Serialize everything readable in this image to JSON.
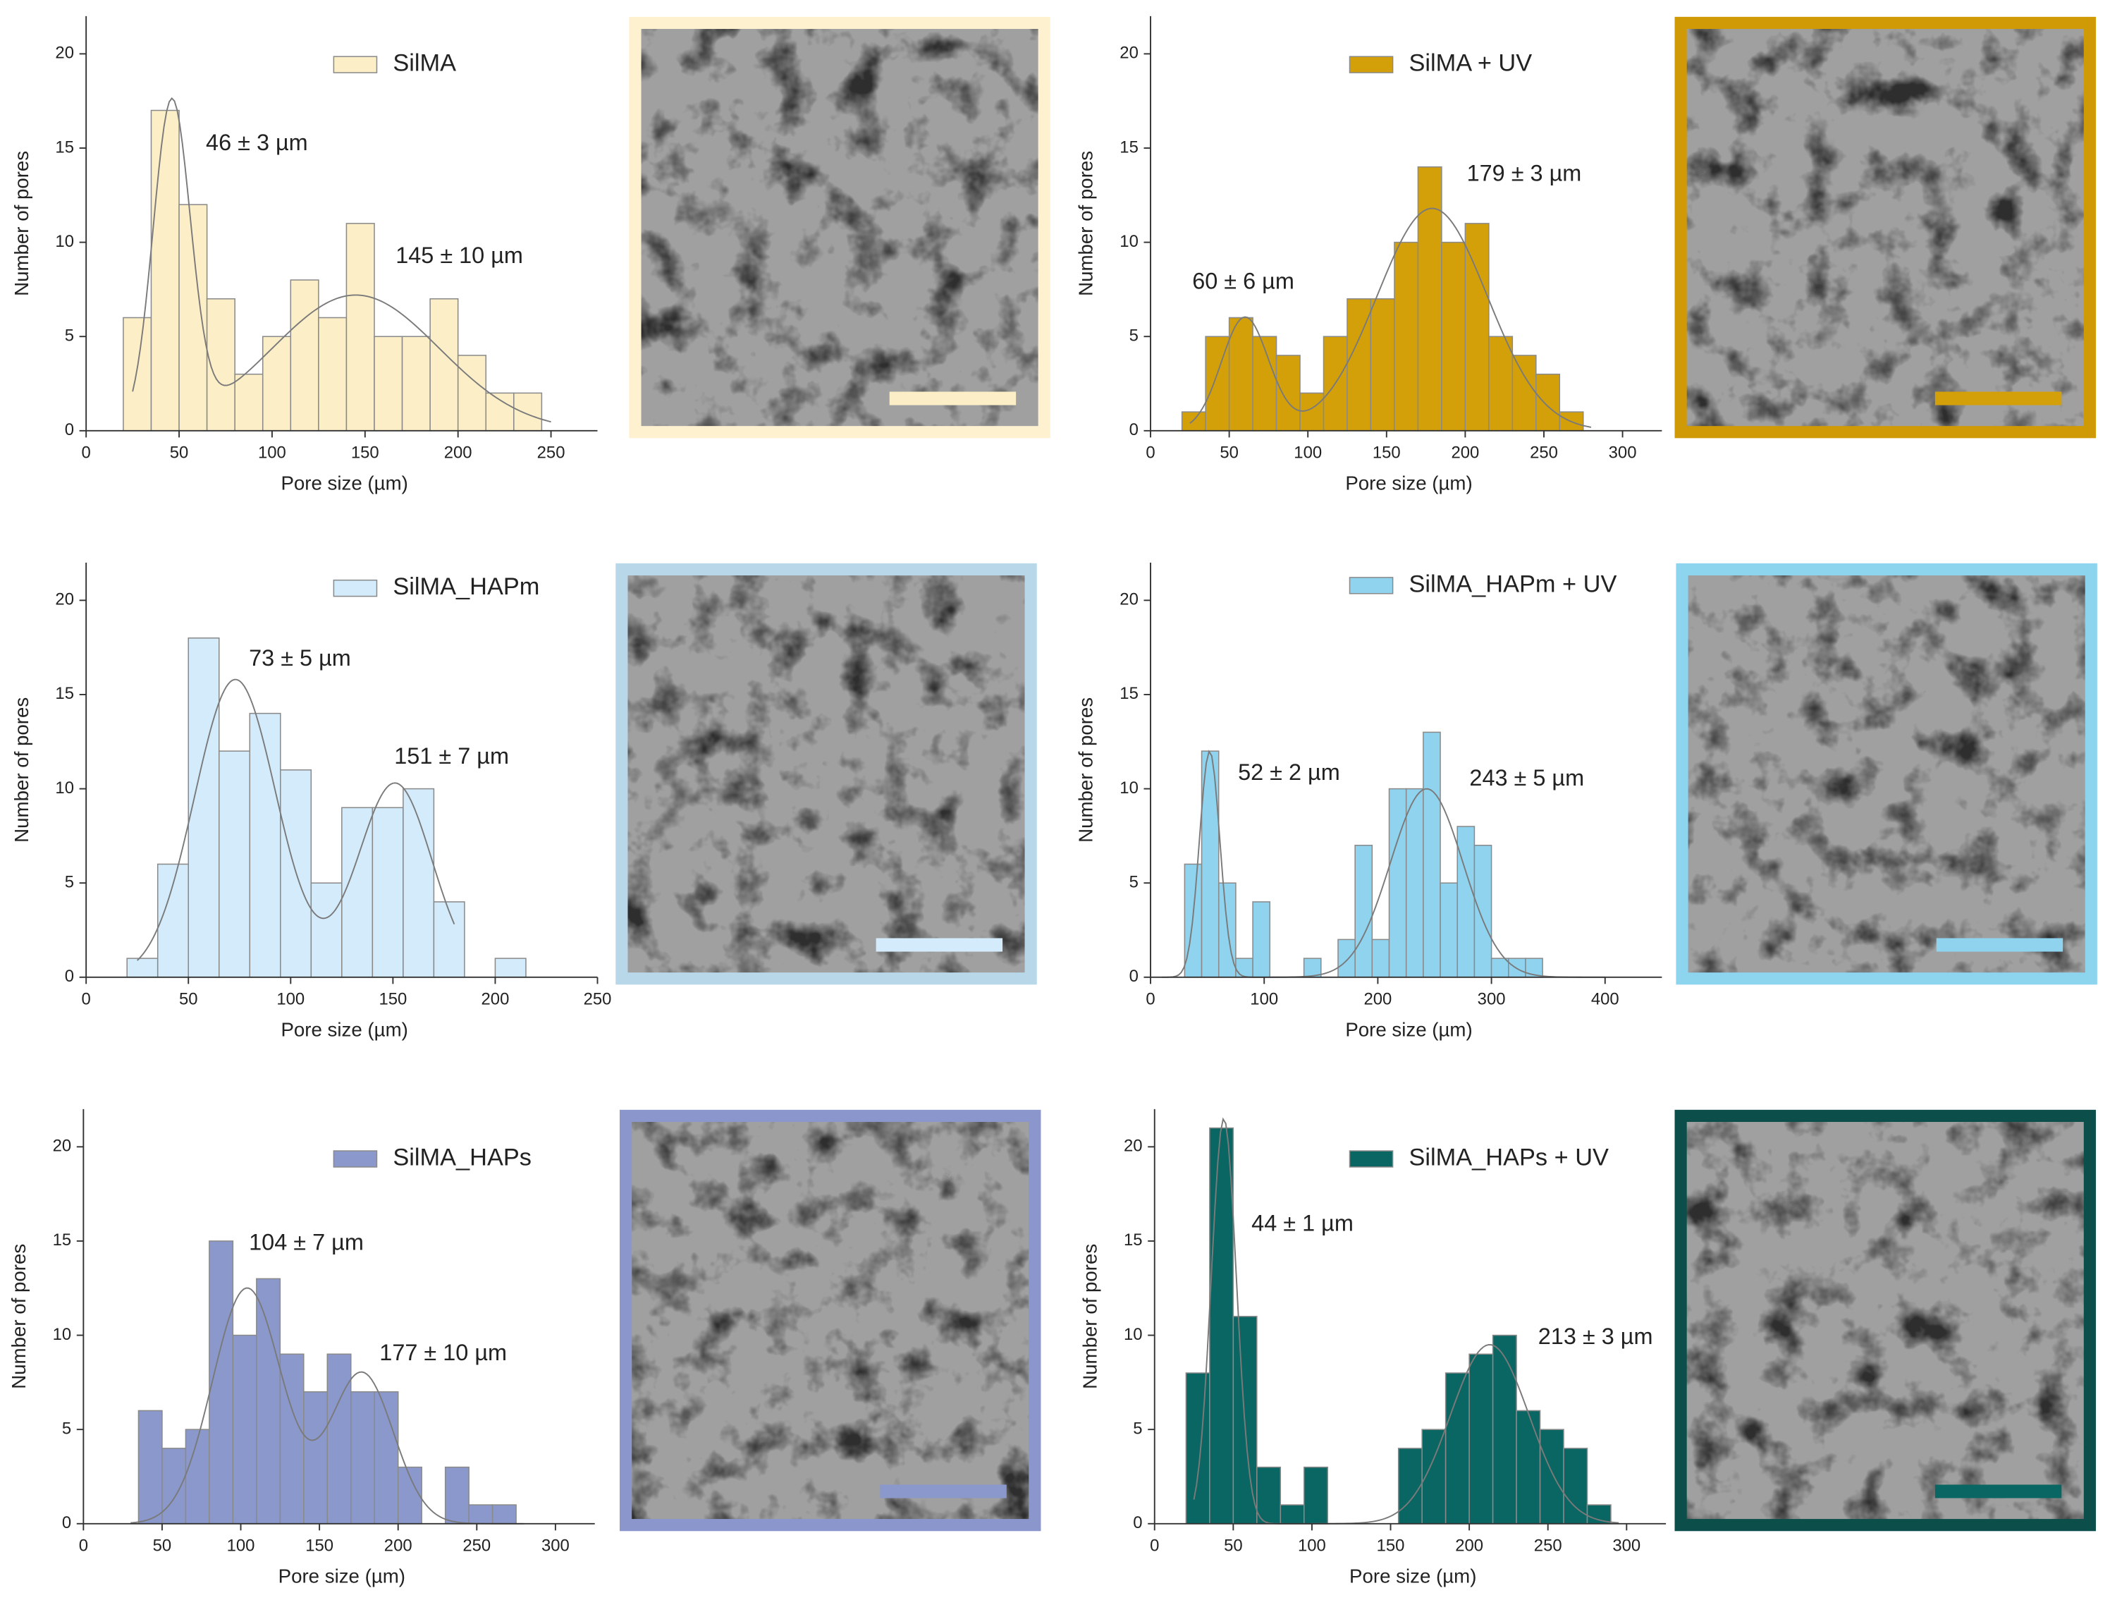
{
  "chart_data": [
    {
      "type": "histogram",
      "name": "SilMA",
      "color": "#fcefc8",
      "image_frame_color": "#fdf1cf",
      "bins": [
        20,
        35,
        50,
        65,
        80,
        95,
        110,
        125,
        140,
        155,
        170,
        185,
        200,
        215,
        230,
        245
      ],
      "values": [
        6,
        17,
        12,
        7,
        3,
        5,
        8,
        6,
        11,
        5,
        5,
        7,
        4,
        2,
        2
      ],
      "xlim": [
        0,
        275
      ],
      "xticks": [
        0,
        50,
        100,
        150,
        200,
        250
      ],
      "ylim": [
        0,
        22
      ],
      "yticks": [
        0,
        5,
        10,
        15,
        20
      ],
      "xlabel": "Pore size (µm)",
      "ylabel": "Number of pores",
      "annotations": [
        "46 ± 3 µm",
        "145 ± 10 µm"
      ],
      "fit_range": [
        25,
        250
      ],
      "peaks": [
        {
          "center": 46,
          "height": 17,
          "sd": 10
        },
        {
          "center": 145,
          "height": 7.2,
          "sd": 45
        }
      ]
    },
    {
      "type": "histogram",
      "name": "SilMA + UV",
      "color": "#d4a00a",
      "image_frame_color": "#cf9a06",
      "bins": [
        20,
        35,
        50,
        65,
        80,
        95,
        110,
        125,
        140,
        155,
        170,
        185,
        200,
        215,
        230,
        245,
        260,
        275
      ],
      "values": [
        1,
        5,
        6,
        5,
        4,
        2,
        5,
        7,
        7,
        10,
        14,
        10,
        11,
        5,
        4,
        3,
        1
      ],
      "xlim": [
        0,
        325
      ],
      "xticks": [
        0,
        50,
        100,
        150,
        200,
        250,
        300
      ],
      "ylim": [
        0,
        22
      ],
      "yticks": [
        0,
        5,
        10,
        15,
        20
      ],
      "xlabel": "Pore size (µm)",
      "ylabel": "Number of pores",
      "annotations": [
        "60 ± 6 µm",
        "179 ± 3 µm"
      ],
      "fit_range": [
        25,
        280
      ],
      "peaks": [
        {
          "center": 60,
          "height": 6,
          "sd": 15
        },
        {
          "center": 179,
          "height": 11.8,
          "sd": 35
        }
      ]
    },
    {
      "type": "histogram",
      "name": "SilMA_HAPm",
      "color": "#d3ebfa",
      "image_frame_color": "#b8d8ea",
      "bins": [
        20,
        35,
        50,
        65,
        80,
        95,
        110,
        125,
        140,
        155,
        170,
        185,
        200,
        215
      ],
      "values": [
        1,
        6,
        18,
        12,
        14,
        11,
        5,
        9,
        9,
        10,
        4,
        0,
        1
      ],
      "xlim": [
        0,
        250
      ],
      "xticks": [
        0,
        50,
        100,
        150,
        200,
        250
      ],
      "ylim": [
        0,
        22
      ],
      "yticks": [
        0,
        5,
        10,
        15,
        20
      ],
      "xlabel": "Pore size (µm)",
      "ylabel": "Number of pores",
      "annotations": [
        "73 ± 5 µm",
        "151 ± 7 µm"
      ],
      "fit_range": [
        25,
        180
      ],
      "peaks": [
        {
          "center": 73,
          "height": 15.8,
          "sd": 20
        },
        {
          "center": 151,
          "height": 10.3,
          "sd": 18
        }
      ]
    },
    {
      "type": "histogram",
      "name": "SilMA_HAPm  + UV",
      "color": "#8fd3ef",
      "image_frame_color": "#8dd4ef",
      "bins": [
        30,
        45,
        60,
        75,
        90,
        105,
        120,
        135,
        150,
        165,
        180,
        195,
        210,
        225,
        240,
        255,
        270,
        285,
        300,
        315,
        330,
        345
      ],
      "values": [
        6,
        12,
        5,
        1,
        4,
        0,
        0,
        1,
        0,
        2,
        7,
        2,
        10,
        10,
        13,
        5,
        8,
        7,
        1,
        1,
        1
      ],
      "xlim": [
        0,
        450
      ],
      "xticks": [
        0,
        100,
        200,
        300,
        400
      ],
      "ylim": [
        0,
        22
      ],
      "yticks": [
        0,
        5,
        10,
        15,
        20
      ],
      "xlabel": "Pore size (µm)",
      "ylabel": "Number of pores",
      "annotations": [
        "52 ± 2 µm",
        "243 ± 5 µm"
      ],
      "fit_range": [
        10,
        400
      ],
      "peaks": [
        {
          "center": 52,
          "height": 12,
          "sd": 9
        },
        {
          "center": 243,
          "height": 10,
          "sd": 32
        }
      ]
    },
    {
      "type": "histogram",
      "name": "SilMA_HAPs",
      "color": "#8a98cc",
      "image_frame_color": "#8b97cc",
      "bins": [
        35,
        50,
        65,
        80,
        95,
        110,
        125,
        140,
        155,
        170,
        185,
        200,
        215,
        230,
        245,
        260,
        275
      ],
      "values": [
        6,
        4,
        5,
        15,
        10,
        13,
        9,
        7,
        9,
        7,
        7,
        3,
        0,
        3,
        1,
        1
      ],
      "xlim": [
        0,
        325
      ],
      "xticks": [
        0,
        50,
        100,
        150,
        200,
        250,
        300
      ],
      "ylim": [
        0,
        22
      ],
      "yticks": [
        0,
        5,
        10,
        15,
        20
      ],
      "xlabel": "Pore size (µm)",
      "ylabel": "Number of pores",
      "annotations": [
        "104 ± 7 µm",
        "177 ± 10 µm"
      ],
      "fit_range": [
        30,
        280
      ],
      "peaks": [
        {
          "center": 104,
          "height": 12.5,
          "sd": 22
        },
        {
          "center": 177,
          "height": 8,
          "sd": 20
        }
      ]
    },
    {
      "type": "histogram",
      "name": "SilMA_HAPs + UV",
      "color": "#0a6663",
      "image_frame_color": "#0b4e4a",
      "bins": [
        20,
        35,
        50,
        65,
        80,
        95,
        110,
        125,
        140,
        155,
        170,
        185,
        200,
        215,
        230,
        245,
        260,
        275,
        290
      ],
      "values": [
        8,
        21,
        11,
        3,
        1,
        3,
        0,
        0,
        0,
        4,
        5,
        8,
        9,
        10,
        6,
        5,
        4,
        1
      ],
      "xlim": [
        0,
        325
      ],
      "xticks": [
        0,
        50,
        100,
        150,
        200,
        250,
        300
      ],
      "ylim": [
        0,
        22
      ],
      "yticks": [
        0,
        5,
        10,
        15,
        20
      ],
      "xlabel": "Pore size (µm)",
      "ylabel": "Number of pores",
      "annotations": [
        "44 ± 1 µm",
        "213 ± 3 µm"
      ],
      "fit_range": [
        25,
        295
      ],
      "peaks": [
        {
          "center": 44,
          "height": 21.5,
          "sd": 8
        },
        {
          "center": 213,
          "height": 9.5,
          "sd": 25
        }
      ]
    }
  ]
}
